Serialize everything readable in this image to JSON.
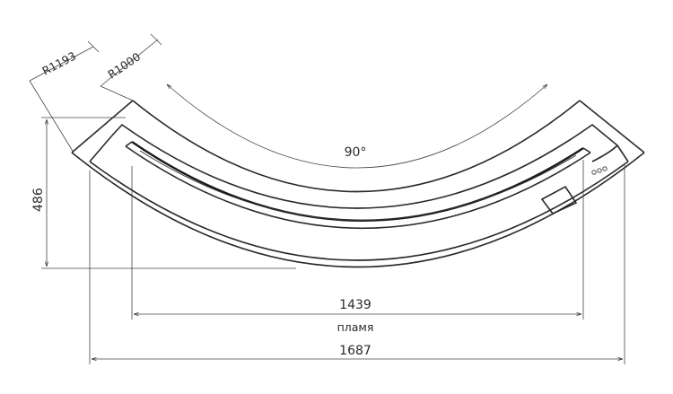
{
  "labels": {
    "radius_outer": "R1193",
    "radius_inner": "R1000",
    "angle": "90°",
    "height": "486",
    "flame_width": "1439",
    "flame_caption": "пламя",
    "total_width": "1687"
  }
}
